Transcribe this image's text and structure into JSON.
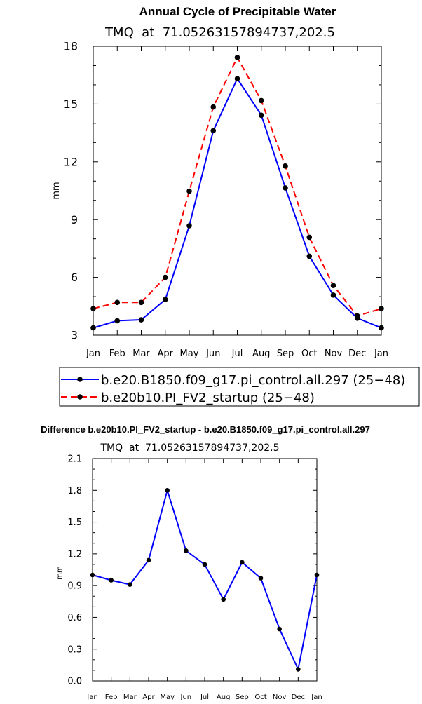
{
  "chart_data": [
    {
      "type": "line",
      "title": "Annual Cycle of Precipitable Water",
      "subtitle": "TMQ  at  71.05263157894737,202.5",
      "ylabel": "mm",
      "xlabel": "",
      "categories": [
        "Jan",
        "Feb",
        "Mar",
        "Apr",
        "May",
        "Jun",
        "Jul",
        "Aug",
        "Sep",
        "Oct",
        "Nov",
        "Dec",
        "Jan"
      ],
      "ylim": [
        3,
        18
      ],
      "yticks": [
        3,
        6,
        9,
        12,
        15,
        18
      ],
      "ytick_labels": [
        "3",
        "6",
        "9",
        "12",
        "15",
        "18"
      ],
      "series": [
        {
          "name": "b.e20.B1850.f09_g17.pi_control.all.297 (25−48)",
          "color": "#0000ff",
          "dash": "solid",
          "values": [
            3.38,
            3.75,
            3.8,
            4.85,
            8.68,
            13.62,
            16.32,
            14.42,
            10.65,
            7.1,
            5.08,
            3.88,
            3.38
          ]
        },
        {
          "name": "b.e20b10.PI_FV2_startup (25−48)",
          "color": "#ff0000",
          "dash": "dashed",
          "values": [
            4.38,
            4.7,
            4.7,
            6.0,
            10.48,
            14.85,
            17.42,
            15.18,
            11.78,
            8.08,
            5.58,
            4.0,
            4.38
          ]
        }
      ]
    },
    {
      "type": "line",
      "title": "Difference b.e20b10.PI_FV2_startup - b.e20.B1850.f09_g17.pi_control.all.297",
      "subtitle": "TMQ  at  71.05263157894737,202.5",
      "ylabel": "mm",
      "xlabel": "",
      "categories": [
        "Jan",
        "Feb",
        "Mar",
        "Apr",
        "May",
        "Jun",
        "Jul",
        "Aug",
        "Sep",
        "Oct",
        "Nov",
        "Dec",
        "Jan"
      ],
      "ylim": [
        0.0,
        2.1
      ],
      "yticks": [
        0.0,
        0.3,
        0.6,
        0.9,
        1.2,
        1.5,
        1.8,
        2.1
      ],
      "ytick_labels": [
        "0.0",
        "0.3",
        "0.6",
        "0.9",
        "1.2",
        "1.5",
        "1.8",
        "2.1"
      ],
      "series": [
        {
          "name": "Difference",
          "color": "#0000ff",
          "dash": "solid",
          "values": [
            1.0,
            0.95,
            0.91,
            1.14,
            1.8,
            1.23,
            1.1,
            0.77,
            1.12,
            0.97,
            0.49,
            0.11,
            1.0
          ]
        }
      ]
    }
  ]
}
